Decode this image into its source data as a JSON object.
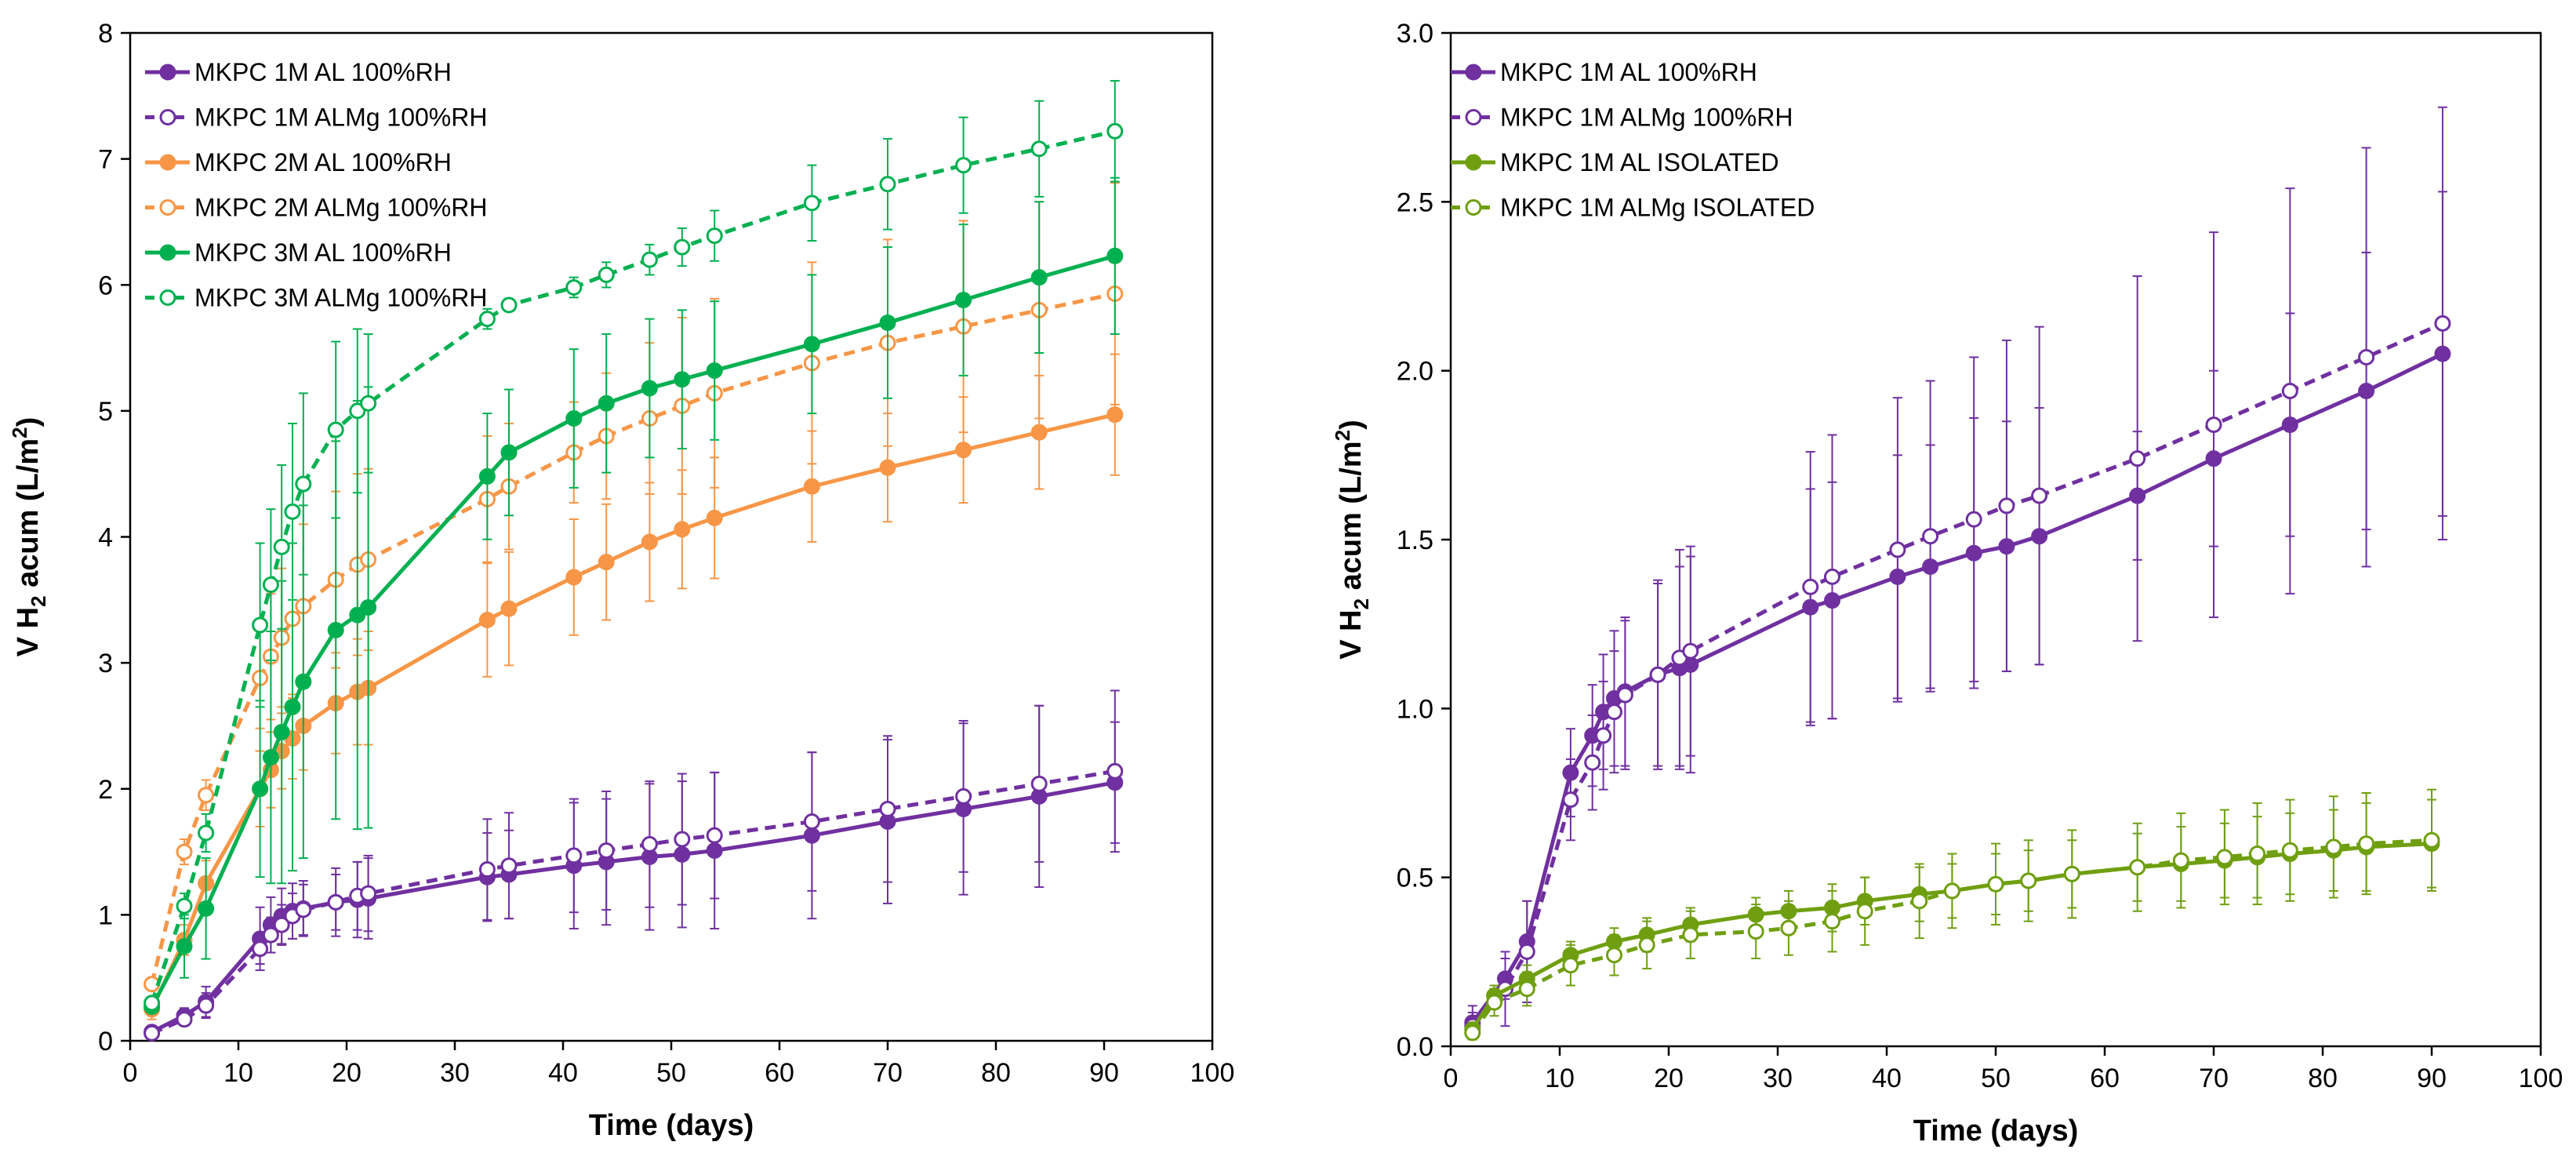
{
  "chart_data": [
    {
      "type": "line",
      "xlabel": "Time (days)",
      "ylabel_parts": [
        "V H",
        "2",
        " acum (L/m",
        "2",
        ")"
      ],
      "xlim": [
        0,
        100
      ],
      "ylim": [
        0,
        8
      ],
      "xticks": [
        "0",
        "10",
        "20",
        "30",
        "40",
        "50",
        "60",
        "70",
        "80",
        "90",
        "100"
      ],
      "yticks": [
        "0",
        "1",
        "2",
        "3",
        "4",
        "5",
        "6",
        "7",
        "8"
      ],
      "grid": false,
      "legend_position": "top-left",
      "series": [
        {
          "name": "MKPC 1M AL 100%RH",
          "color": "#7030a0",
          "dash": false,
          "filled": true,
          "x": [
            2,
            5,
            7,
            12,
            13,
            14,
            15,
            16,
            19,
            21,
            22,
            33,
            35,
            41,
            44,
            48,
            51,
            54,
            63,
            70,
            77,
            84,
            91
          ],
          "y": [
            0.07,
            0.2,
            0.31,
            0.81,
            0.92,
            0.99,
            1.03,
            1.05,
            1.1,
            1.12,
            1.13,
            1.3,
            1.32,
            1.39,
            1.42,
            1.46,
            1.48,
            1.51,
            1.63,
            1.74,
            1.84,
            1.94,
            2.05
          ],
          "err": [
            0.05,
            0.06,
            0.12,
            0.25,
            0.22,
            0.22,
            0.22,
            0.22,
            0.27,
            0.3,
            0.32,
            0.35,
            0.35,
            0.5,
            0.5,
            0.58,
            0.58,
            0.62,
            0.66,
            0.65,
            0.68,
            0.72,
            0.48
          ]
        },
        {
          "name": "MKPC 1M ALMg 100%RH",
          "color": "#7030a0",
          "dash": true,
          "filled": false,
          "x": [
            2,
            5,
            7,
            12,
            13,
            14,
            15,
            16,
            19,
            21,
            22,
            33,
            35,
            41,
            44,
            48,
            51,
            54,
            63,
            70,
            77,
            84,
            91
          ],
          "y": [
            0.06,
            0.17,
            0.28,
            0.73,
            0.84,
            0.92,
            0.99,
            1.04,
            1.1,
            1.15,
            1.17,
            1.36,
            1.39,
            1.47,
            1.51,
            1.56,
            1.6,
            1.63,
            1.74,
            1.84,
            1.94,
            2.04,
            2.14
          ],
          "err": [
            0.04,
            0.05,
            0.1,
            0.12,
            0.14,
            0.16,
            0.18,
            0.2,
            0.22,
            0.27,
            0.3,
            0.4,
            0.42,
            0.45,
            0.47,
            0.5,
            0.52,
            0.5,
            0.55,
            0.58,
            0.6,
            0.62,
            0.64
          ]
        },
        {
          "name": "MKPC 2M AL 100%RH",
          "color": "#f79646",
          "dash": false,
          "filled": true,
          "x": [
            2,
            5,
            7,
            12,
            13,
            14,
            15,
            16,
            19,
            21,
            22,
            33,
            35,
            41,
            44,
            48,
            51,
            54,
            63,
            70,
            77,
            84,
            91
          ],
          "y": [
            0.25,
            0.8,
            1.25,
            2.0,
            2.15,
            2.3,
            2.4,
            2.5,
            2.68,
            2.77,
            2.8,
            3.34,
            3.43,
            3.68,
            3.8,
            3.96,
            4.06,
            4.15,
            4.4,
            4.55,
            4.69,
            4.83,
            4.97
          ],
          "err": [
            0.08,
            0.12,
            0.18,
            0.3,
            0.3,
            0.3,
            0.32,
            0.35,
            0.4,
            0.42,
            0.45,
            0.45,
            0.45,
            0.46,
            0.46,
            0.47,
            0.47,
            0.48,
            0.44,
            0.43,
            0.42,
            0.45,
            0.48
          ]
        },
        {
          "name": "MKPC 2M ALMg 100%RH",
          "color": "#f79646",
          "dash": true,
          "filled": false,
          "x": [
            2,
            5,
            7,
            12,
            13,
            14,
            15,
            16,
            19,
            21,
            22,
            33,
            35,
            41,
            44,
            48,
            51,
            54,
            63,
            70,
            77,
            84,
            91
          ],
          "y": [
            0.45,
            1.5,
            1.95,
            2.88,
            3.05,
            3.2,
            3.35,
            3.45,
            3.66,
            3.78,
            3.82,
            4.3,
            4.4,
            4.67,
            4.8,
            4.94,
            5.04,
            5.14,
            5.38,
            5.54,
            5.67,
            5.8,
            5.93
          ],
          "err": [
            0.05,
            0.1,
            0.12,
            0.4,
            0.5,
            0.55,
            0.6,
            0.65,
            0.7,
            0.72,
            0.72,
            0.5,
            0.5,
            0.4,
            0.5,
            0.6,
            0.7,
            0.75,
            0.8,
            0.82,
            0.84,
            0.86,
            0.88
          ]
        },
        {
          "name": "MKPC 3M AL 100%RH",
          "color": "#00b050",
          "dash": false,
          "filled": true,
          "x": [
            2,
            5,
            7,
            12,
            13,
            14,
            15,
            16,
            19,
            21,
            22,
            33,
            35,
            41,
            44,
            48,
            51,
            54,
            63,
            70,
            77,
            84,
            91
          ],
          "y": [
            0.27,
            0.75,
            1.05,
            2.0,
            2.25,
            2.45,
            2.65,
            2.85,
            3.26,
            3.38,
            3.44,
            4.48,
            4.67,
            4.94,
            5.06,
            5.18,
            5.25,
            5.32,
            5.53,
            5.7,
            5.88,
            6.06,
            6.23
          ],
          "err": [
            0.04,
            0.25,
            0.4,
            0.7,
            1.0,
            1.2,
            1.3,
            1.4,
            1.5,
            1.7,
            1.75,
            0.5,
            0.5,
            0.55,
            0.55,
            0.55,
            0.55,
            0.55,
            0.55,
            0.6,
            0.6,
            0.6,
            0.62
          ]
        },
        {
          "name": "MKPC 3M ALMg 100%RH",
          "color": "#00b050",
          "dash": true,
          "filled": false,
          "x": [
            2,
            5,
            7,
            12,
            13,
            14,
            15,
            16,
            19,
            21,
            22,
            33,
            35,
            41,
            44,
            48,
            51,
            54,
            63,
            70,
            77,
            84,
            91
          ],
          "y": [
            0.3,
            1.07,
            1.65,
            3.3,
            3.62,
            3.92,
            4.2,
            4.42,
            4.85,
            5.0,
            5.06,
            5.73,
            5.84,
            5.98,
            6.08,
            6.2,
            6.3,
            6.39,
            6.65,
            6.8,
            6.95,
            7.08,
            7.22
          ],
          "err": [
            0.03,
            0.1,
            0.15,
            0.65,
            0.6,
            0.65,
            0.7,
            0.72,
            0.7,
            0.65,
            0.55,
            0.08,
            0.05,
            0.08,
            0.1,
            0.12,
            0.15,
            0.2,
            0.3,
            0.36,
            0.38,
            0.38,
            0.4
          ]
        }
      ]
    },
    {
      "type": "line",
      "xlabel": "Time (days)",
      "ylabel_parts": [
        "V H",
        "2",
        " acum (L/m",
        "2",
        ")"
      ],
      "xlim": [
        0,
        100
      ],
      "ylim": [
        0,
        3
      ],
      "xticks": [
        "0",
        "10",
        "20",
        "30",
        "40",
        "50",
        "60",
        "70",
        "80",
        "90",
        "100"
      ],
      "yticks": [
        "0.0",
        "0.5",
        "1.0",
        "1.5",
        "2.0",
        "2.5",
        "3.0"
      ],
      "grid": false,
      "legend_position": "top-left",
      "series": [
        {
          "name": "MKPC 1M AL 100%RH",
          "color": "#7030a0",
          "dash": false,
          "filled": true,
          "x": [
            2,
            5,
            7,
            11,
            13,
            14,
            15,
            16,
            19,
            21,
            22,
            33,
            35,
            41,
            44,
            48,
            51,
            54,
            63,
            70,
            77,
            84,
            91
          ],
          "y": [
            0.07,
            0.2,
            0.31,
            0.81,
            0.92,
            0.99,
            1.03,
            1.05,
            1.1,
            1.12,
            1.13,
            1.3,
            1.32,
            1.39,
            1.42,
            1.46,
            1.48,
            1.51,
            1.63,
            1.74,
            1.84,
            1.94,
            2.05
          ],
          "err": [
            0.05,
            0.06,
            0.12,
            0.13,
            0.15,
            0.17,
            0.2,
            0.22,
            0.27,
            0.3,
            0.32,
            0.35,
            0.35,
            0.36,
            0.36,
            0.4,
            0.37,
            0.38,
            0.19,
            0.26,
            0.33,
            0.41,
            0.48
          ]
        },
        {
          "name": "MKPC 1M ALMg 100%RH",
          "color": "#7030a0",
          "dash": true,
          "filled": false,
          "x": [
            2,
            5,
            7,
            11,
            13,
            14,
            15,
            16,
            19,
            21,
            22,
            33,
            35,
            41,
            44,
            48,
            51,
            54,
            63,
            70,
            77,
            84,
            91
          ],
          "y": [
            0.06,
            0.17,
            0.28,
            0.73,
            0.84,
            0.92,
            0.99,
            1.04,
            1.1,
            1.15,
            1.17,
            1.36,
            1.39,
            1.47,
            1.51,
            1.56,
            1.6,
            1.63,
            1.74,
            1.84,
            1.94,
            2.04,
            2.14
          ],
          "err": [
            0.04,
            0.11,
            0.15,
            0.12,
            0.14,
            0.16,
            0.18,
            0.22,
            0.28,
            0.32,
            0.31,
            0.4,
            0.42,
            0.45,
            0.46,
            0.48,
            0.49,
            0.5,
            0.54,
            0.57,
            0.6,
            0.62,
            0.64
          ]
        },
        {
          "name": "MKPC 1M AL ISOLATED",
          "color": "#6f9f10",
          "dash": false,
          "filled": true,
          "x": [
            2,
            4,
            7,
            11,
            15,
            18,
            22,
            28,
            31,
            35,
            38,
            43,
            46,
            50,
            53,
            57,
            63,
            67,
            71,
            74,
            77,
            81,
            84,
            90
          ],
          "y": [
            0.05,
            0.15,
            0.2,
            0.27,
            0.31,
            0.33,
            0.36,
            0.39,
            0.4,
            0.41,
            0.43,
            0.45,
            0.46,
            0.48,
            0.49,
            0.51,
            0.53,
            0.54,
            0.55,
            0.56,
            0.57,
            0.58,
            0.59,
            0.6
          ],
          "err": [
            0.02,
            0.03,
            0.04,
            0.04,
            0.04,
            0.05,
            0.05,
            0.05,
            0.06,
            0.07,
            0.07,
            0.08,
            0.08,
            0.09,
            0.09,
            0.1,
            0.1,
            0.11,
            0.11,
            0.12,
            0.12,
            0.12,
            0.13,
            0.13
          ]
        },
        {
          "name": "MKPC 1M ALMg ISOLATED",
          "color": "#6f9f10",
          "dash": true,
          "filled": false,
          "x": [
            2,
            4,
            7,
            11,
            15,
            18,
            22,
            28,
            31,
            35,
            38,
            43,
            46,
            50,
            53,
            57,
            63,
            67,
            71,
            74,
            77,
            81,
            84,
            90
          ],
          "y": [
            0.04,
            0.13,
            0.17,
            0.24,
            0.27,
            0.3,
            0.33,
            0.34,
            0.35,
            0.37,
            0.4,
            0.43,
            0.46,
            0.48,
            0.49,
            0.51,
            0.53,
            0.55,
            0.56,
            0.57,
            0.58,
            0.59,
            0.6,
            0.61
          ],
          "err": [
            0.02,
            0.04,
            0.05,
            0.06,
            0.06,
            0.07,
            0.07,
            0.08,
            0.08,
            0.09,
            0.1,
            0.11,
            0.11,
            0.12,
            0.12,
            0.13,
            0.13,
            0.14,
            0.14,
            0.15,
            0.15,
            0.15,
            0.15,
            0.15
          ]
        }
      ]
    }
  ]
}
